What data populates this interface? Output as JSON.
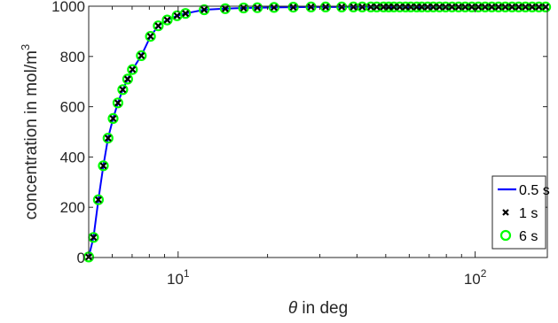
{
  "chart_data": {
    "type": "line",
    "x_scale": "log",
    "xlim": [
      5,
      175
    ],
    "ylim": [
      0,
      1000
    ],
    "x_ticks": [
      {
        "value": 10,
        "base": "10",
        "exp": "1"
      },
      {
        "value": 100,
        "base": "10",
        "exp": "2"
      }
    ],
    "y_ticks": [
      0,
      200,
      400,
      600,
      800,
      1000
    ],
    "xlabel": {
      "symbol": "θ",
      "text": " in deg"
    },
    "ylabel": {
      "text": "concentration in mol/m",
      "sup": "3"
    },
    "legend": {
      "position": "lower-right",
      "entries": [
        "0.5 s",
        "1 s",
        "6 s"
      ]
    },
    "series": [
      {
        "name": "0.5 s",
        "style": "line",
        "color": "#0000ff"
      },
      {
        "name": "1 s",
        "style": "x-marker",
        "color": "#000000"
      },
      {
        "name": "6 s",
        "style": "circle-marker",
        "color": "#00ff00"
      }
    ],
    "x": [
      5.0,
      5.19,
      5.39,
      5.6,
      5.81,
      6.04,
      6.27,
      6.51,
      6.76,
      7.02,
      7.52,
      8.07,
      8.57,
      9.19,
      9.92,
      10.59,
      12.24,
      14.41,
      16.61,
      18.48,
      21.03,
      24.41,
      28.01,
      31.37,
      35.55,
      38.92,
      41.66,
      44.53,
      46.64,
      49.14,
      51.17,
      53.2,
      55.74,
      58.3,
      60.69,
      63.58,
      66.1,
      69.2,
      72.25,
      75.82,
      79.54,
      83.55,
      87.97,
      92.57,
      97.47,
      102.59,
      108.03,
      113.8,
      119.89,
      126.31,
      133.07,
      140.19,
      147.69,
      155.58,
      163.9,
      172.67
    ],
    "values": [
      2,
      80,
      230,
      365,
      475,
      553,
      615,
      668,
      710,
      748,
      803,
      880,
      922,
      945,
      962,
      971,
      986,
      990,
      993,
      994,
      995,
      996,
      997,
      997,
      997,
      997,
      997,
      997,
      997,
      997,
      997,
      997,
      997,
      997,
      997,
      997,
      997,
      997,
      997,
      997,
      997,
      997,
      997,
      997,
      997,
      997,
      997,
      997,
      997,
      997,
      997,
      997,
      997,
      997,
      997,
      997
    ]
  }
}
